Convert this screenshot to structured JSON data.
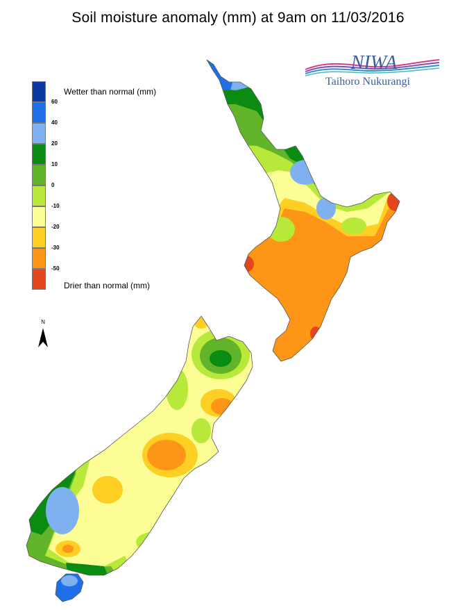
{
  "title": "Soil moisture anomaly (mm) at 9am on 11/03/2016",
  "legend": {
    "top_label": "Wetter than normal (mm)",
    "bottom_label": "Drier than normal (mm)",
    "bins": [
      {
        "color": "#0a3aa0",
        "label": "60"
      },
      {
        "color": "#1f6fe8",
        "label": "40"
      },
      {
        "color": "#7fb0f0",
        "label": "20"
      },
      {
        "color": "#0a8c12",
        "label": "10"
      },
      {
        "color": "#62b52a",
        "label": "0"
      },
      {
        "color": "#b7e83a",
        "label": "-10"
      },
      {
        "color": "#fdfd96",
        "label": "-20"
      },
      {
        "color": "#fdcf22",
        "label": "-30"
      },
      {
        "color": "#fd9616",
        "label": "-50"
      },
      {
        "color": "#e2461a",
        "label": ""
      }
    ]
  },
  "logo": {
    "brand": "NIWA",
    "subtitle": "Taihoro Nukurangi"
  },
  "north_arrow_label": "N",
  "colors": {
    "coast": "#555555",
    "brand_text": "#3a5d9c"
  }
}
